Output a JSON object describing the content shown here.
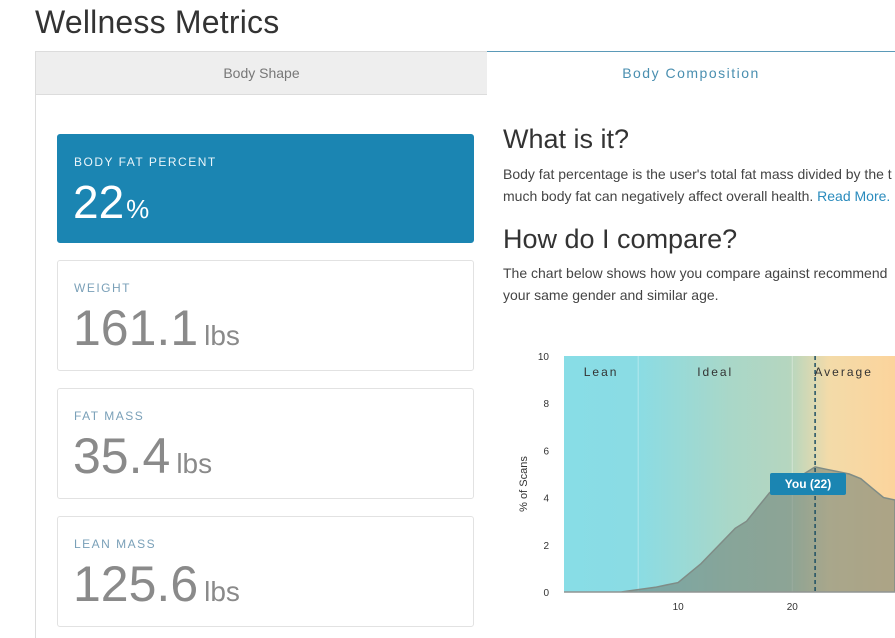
{
  "page": {
    "title": "Wellness Metrics"
  },
  "tabs": [
    {
      "label": "Body Shape",
      "active": false
    },
    {
      "label": "Body Composition",
      "active": true
    }
  ],
  "metrics": {
    "body_fat": {
      "label": "BODY FAT PERCENT",
      "value": "22",
      "unit": "%"
    },
    "weight": {
      "label": "WEIGHT",
      "value": "161.1",
      "unit": "lbs"
    },
    "fat_mass": {
      "label": "FAT MASS",
      "value": "35.4",
      "unit": "lbs"
    },
    "lean_mass": {
      "label": "LEAN MASS",
      "value": "125.6",
      "unit": "lbs"
    }
  },
  "info": {
    "what_heading": "What is it?",
    "what_line1": "Body fat percentage is the user's total fat mass divided by the t",
    "what_line2": "much body fat can negatively affect overall health.",
    "read_more": "Read More.",
    "compare_heading": "How do I compare?",
    "compare_line1": "The chart below shows how you compare against recommend",
    "compare_line2": "your same gender and similar age."
  },
  "colors": {
    "accent": "#1b85b2",
    "lean": "#8adde6",
    "ideal": "#a8d6c6",
    "average": "#fbd7a2"
  },
  "chart_data": {
    "type": "area",
    "ylabel": "% of Scans",
    "xlabel": "",
    "xlim": [
      0,
      29
    ],
    "ylim": [
      0,
      10
    ],
    "x_ticks": [
      10,
      20
    ],
    "y_ticks": [
      0,
      2,
      4,
      6,
      8,
      10
    ],
    "zones": [
      {
        "name": "Lean",
        "from": 0,
        "to": 6.5
      },
      {
        "name": "Ideal",
        "from": 6.5,
        "to": 20
      },
      {
        "name": "Average",
        "from": 20,
        "to": 29
      }
    ],
    "marker": {
      "x": 22,
      "label": "You (22)"
    },
    "x": [
      0,
      5,
      6.5,
      8,
      9,
      10,
      11,
      12,
      13,
      14,
      15,
      16,
      17,
      18,
      19,
      20,
      21,
      22,
      23,
      24,
      25,
      26,
      27,
      28,
      29
    ],
    "values": [
      0,
      0,
      0.1,
      0.2,
      0.3,
      0.4,
      0.8,
      1.2,
      1.7,
      2.2,
      2.7,
      3.0,
      3.6,
      4.2,
      4.6,
      4.9,
      5.0,
      5.3,
      5.2,
      5.1,
      5.0,
      4.8,
      4.4,
      4.0,
      3.9
    ]
  }
}
